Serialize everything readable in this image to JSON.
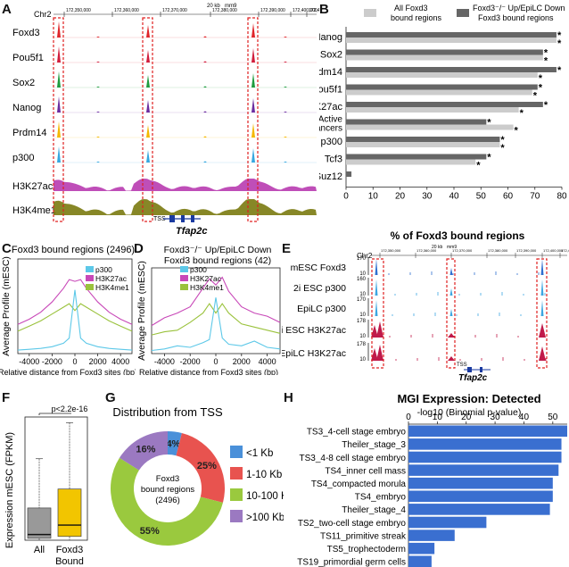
{
  "panels": {
    "a": "A",
    "b": "B",
    "c": "C",
    "d": "D",
    "e": "E",
    "f": "F",
    "g": "G",
    "h": "H"
  },
  "panelA": {
    "chrom": "Chr2",
    "coords": [
      "172,350,000",
      "172,360,000",
      "172,370,000",
      "172,380,000",
      "172,390,000",
      "172,400,000",
      "172,410,000"
    ],
    "scale": "20 kb",
    "build": "mm9",
    "tracks": [
      "Foxd3",
      "Pou5f1",
      "Sox2",
      "Nanog",
      "Prdm14",
      "p300",
      "H3K27ac",
      "H3K4me1"
    ],
    "colors": [
      "#e0262b",
      "#d11d3c",
      "#1f9c3f",
      "#6b2ca0",
      "#f5b800",
      "#35a7e0",
      "#b83bb0",
      "#7a7a10"
    ],
    "tss": "TSS",
    "gene": "Tfap2c"
  },
  "panelB": {
    "legend": [
      "All Foxd3 bound regions",
      "Foxd3⁻/⁻ Up/EpiLC Down Foxd3 bound regions"
    ],
    "xlabel": "% of Foxd3 bound regions",
    "star": "*"
  },
  "panelC": {
    "title": "Foxd3 bound regions (2496)"
  },
  "panelD": {
    "title1": "Foxd3⁻/⁻ Up/EpiLC Down",
    "title2": "Foxd3 bound regions (42)"
  },
  "panelCD": {
    "ylabel": "Average Profile (mESC)",
    "xlabel": "Relative distance from Foxd3 sites (bp)",
    "legend": [
      "p300",
      "H3K27ac",
      "H3K4me1"
    ]
  },
  "panelE": {
    "chrom": "Chr2",
    "coords": [
      "172,350,000",
      "172,360,000",
      "172,370,000",
      "172,380,000",
      "172,390,000",
      "172,400,000",
      "172,410,000"
    ],
    "scale": "20 kb",
    "build": "mm9",
    "tracks": [
      {
        "label": "mESC Foxd3",
        "max": "170",
        "min": "10",
        "color": "#2f6fd0"
      },
      {
        "label": "2i ESC p300",
        "max": "160",
        "min": "10",
        "color": "#3da6e2"
      },
      {
        "label": "EpiLC p300",
        "max": "170",
        "min": "10",
        "color": "#3da6e2"
      },
      {
        "label": "2i ESC H3K27ac",
        "max": "178",
        "min": "10",
        "color": "#c01a4a"
      },
      {
        "label": "EpiLC H3K27ac",
        "max": "178",
        "min": "10",
        "color": "#c01a4a"
      }
    ],
    "tss": "TSS",
    "gene": "Tfap2c"
  },
  "panelF": {
    "pvalue": "p<2.2e-16",
    "ylabel": "Expression mESC (FPKM)",
    "categories": [
      "All",
      "Foxd3\nBound"
    ],
    "cat1": "All",
    "cat2a": "Foxd3",
    "cat2b": "Bound"
  },
  "panelG": {
    "title": "Distribution from TSS",
    "center1": "Foxd3",
    "center2": "bound regions",
    "center3": "(2496)"
  },
  "panelH": {
    "title": "MGI Expression: Detected",
    "xlabel": "-log10 (Binomial p-value)"
  },
  "chart_data": [
    {
      "id": "B",
      "type": "bar",
      "orientation": "horizontal",
      "categories": [
        "Nanog",
        "Sox2",
        "Prdm14",
        "Pou5f1",
        "H3K27ac",
        "Active enhancers",
        "p300",
        "Tcf3",
        "Suz12"
      ],
      "series": [
        {
          "name": "Foxd3⁻/⁻ Up/EpiLC Down Foxd3 bound regions",
          "color": "#666666",
          "values": [
            78,
            73,
            78,
            71,
            73,
            52,
            57,
            52,
            2
          ]
        },
        {
          "name": "All Foxd3 bound regions",
          "color": "#cccccc",
          "values": [
            78,
            73,
            71,
            69,
            64,
            62,
            57,
            48,
            0
          ]
        }
      ],
      "stars_dark": [
        true,
        true,
        true,
        true,
        true,
        true,
        true,
        true,
        false
      ],
      "stars_light": [
        true,
        true,
        true,
        true,
        true,
        true,
        true,
        true,
        false
      ],
      "xlim": [
        0,
        80
      ],
      "xticks": [
        0,
        10,
        20,
        30,
        40,
        50,
        60,
        70,
        80
      ]
    },
    {
      "id": "C",
      "type": "line",
      "x": [
        -5000,
        -4000,
        -3000,
        -2000,
        -1000,
        -500,
        0,
        500,
        1000,
        2000,
        3000,
        4000,
        5000
      ],
      "series": [
        {
          "name": "H3K27ac",
          "color": "#c848b8",
          "values": [
            1.7,
            2.0,
            2.4,
            3.0,
            3.8,
            4.3,
            4.2,
            4.3,
            3.8,
            3.0,
            2.4,
            2.0,
            1.7
          ]
        },
        {
          "name": "H3K4me1",
          "color": "#9ac23c",
          "values": [
            1.3,
            1.6,
            1.9,
            2.3,
            2.7,
            2.9,
            2.5,
            2.9,
            2.7,
            2.3,
            1.9,
            1.6,
            1.3
          ]
        },
        {
          "name": "p300",
          "color": "#5cc8e8",
          "values": [
            0.2,
            0.25,
            0.3,
            0.4,
            0.6,
            0.9,
            3.7,
            0.9,
            0.6,
            0.4,
            0.3,
            0.25,
            0.2
          ]
        }
      ],
      "xticks": [
        -4000,
        -2000,
        0,
        2000,
        4000
      ],
      "xlim": [
        -5000,
        5000
      ],
      "ylim": [
        0,
        5.5
      ]
    },
    {
      "id": "D",
      "type": "line",
      "x": [
        -5000,
        -4000,
        -3000,
        -2000,
        -1000,
        -500,
        0,
        500,
        1000,
        2000,
        3000,
        4000,
        5000
      ],
      "series": [
        {
          "name": "H3K27ac",
          "color": "#c848b8",
          "values": [
            1.8,
            2.3,
            2.6,
            3.0,
            4.2,
            4.8,
            4.4,
            4.9,
            4.0,
            3.0,
            2.6,
            2.4,
            2.0
          ]
        },
        {
          "name": "H3K4me1",
          "color": "#9ac23c",
          "values": [
            1.2,
            1.4,
            1.5,
            2.0,
            2.6,
            3.2,
            2.6,
            3.2,
            2.6,
            1.9,
            1.7,
            1.5,
            1.3
          ]
        },
        {
          "name": "p300",
          "color": "#5cc8e8",
          "values": [
            0.2,
            0.3,
            0.5,
            0.4,
            0.7,
            0.9,
            3.6,
            1.0,
            0.6,
            0.5,
            0.8,
            0.4,
            0.3
          ]
        }
      ],
      "xticks": [
        -4000,
        -2000,
        0,
        2000,
        4000
      ],
      "xlim": [
        -5000,
        5000
      ],
      "ylim": [
        0,
        5.5
      ]
    },
    {
      "id": "F",
      "type": "box",
      "categories": [
        "All",
        "Foxd3 Bound"
      ],
      "boxes": [
        {
          "name": "All",
          "color": "#999999",
          "whisker_low": 0,
          "q1": 1,
          "median": 3,
          "q3": 17,
          "whisker_high": 43
        },
        {
          "name": "Foxd3 Bound",
          "color": "#f2c500",
          "whisker_low": 0,
          "q1": 2,
          "median": 8,
          "q3": 27,
          "whisker_high": 62
        }
      ],
      "ylim": [
        0,
        65
      ]
    },
    {
      "id": "G",
      "type": "pie",
      "donut": true,
      "slices": [
        {
          "label": "<1 Kb",
          "value": 4,
          "color": "#4a90d9",
          "text": "4%"
        },
        {
          "label": "1-10 Kb",
          "value": 25,
          "color": "#e8534f",
          "text": "25%"
        },
        {
          "label": "10-100 Kb",
          "value": 55,
          "color": "#9ac93e",
          "text": "55%"
        },
        {
          "label": ">100 Kb",
          "value": 16,
          "color": "#9b79c1",
          "text": "16%"
        }
      ]
    },
    {
      "id": "H",
      "type": "bar",
      "orientation": "horizontal",
      "categories": [
        "TS3_4-cell stage embryo",
        "Theiler_stage_3",
        "TS3_4-8 cell stage embryo",
        "TS4_inner cell mass",
        "TS4_compacted morula",
        "TS4_embryo",
        "Theiler_stage_4",
        "TS2_two-cell stage embryo",
        "TS11_primitive streak",
        "TS5_trophectoderm",
        "TS19_primordial germ cells"
      ],
      "values": [
        55,
        53,
        53,
        52,
        50,
        50,
        49,
        27,
        16,
        9,
        8
      ],
      "color": "#3a6fd0",
      "xlim": [
        0,
        55
      ],
      "xticks": [
        0,
        10,
        20,
        30,
        40,
        50
      ]
    }
  ]
}
